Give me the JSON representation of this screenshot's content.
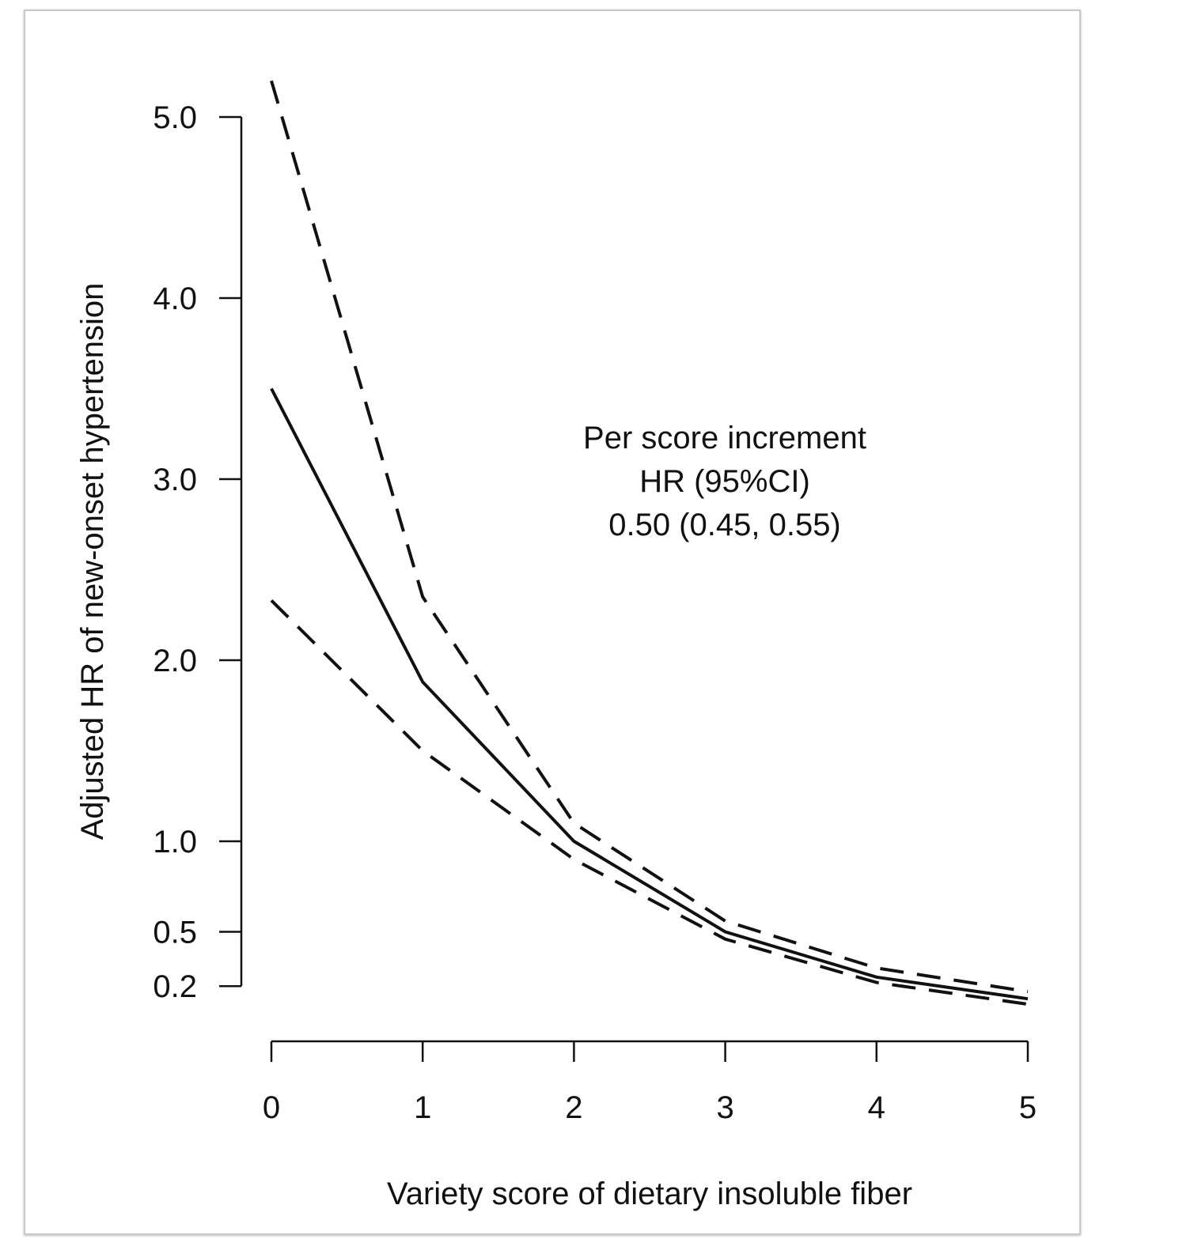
{
  "chart_data": {
    "type": "line",
    "title": "",
    "xlabel": "Variety score of dietary insoluble fiber",
    "ylabel": "Adjusted HR of new-onset hypertension",
    "xlim": [
      0,
      5
    ],
    "ylim": [
      0.2,
      5.0
    ],
    "x_ticks": [
      "0",
      "1",
      "2",
      "3",
      "4",
      "5"
    ],
    "y_ticks": [
      "0.2",
      "0.5",
      "1.0",
      "2.0",
      "3.0",
      "4.0",
      "5.0"
    ],
    "grid": false,
    "legend": "none",
    "annotation": {
      "lines": [
        "Per score increment",
        "HR (95%CI)",
        "0.50 (0.45, 0.55)"
      ]
    },
    "x": [
      0,
      1,
      2,
      3,
      4,
      5
    ],
    "series": [
      {
        "style": "solid",
        "values": [
          3.5,
          1.88,
          1.0,
          0.5,
          0.25,
          0.13
        ]
      },
      {
        "style": "dashed",
        "values": [
          5.2,
          2.35,
          1.1,
          0.56,
          0.3,
          0.17
        ]
      },
      {
        "style": "dashed",
        "values": [
          2.33,
          1.5,
          0.9,
          0.46,
          0.22,
          0.1
        ]
      }
    ],
    "colors": {
      "line": "#111111",
      "axis": "#111111"
    }
  }
}
